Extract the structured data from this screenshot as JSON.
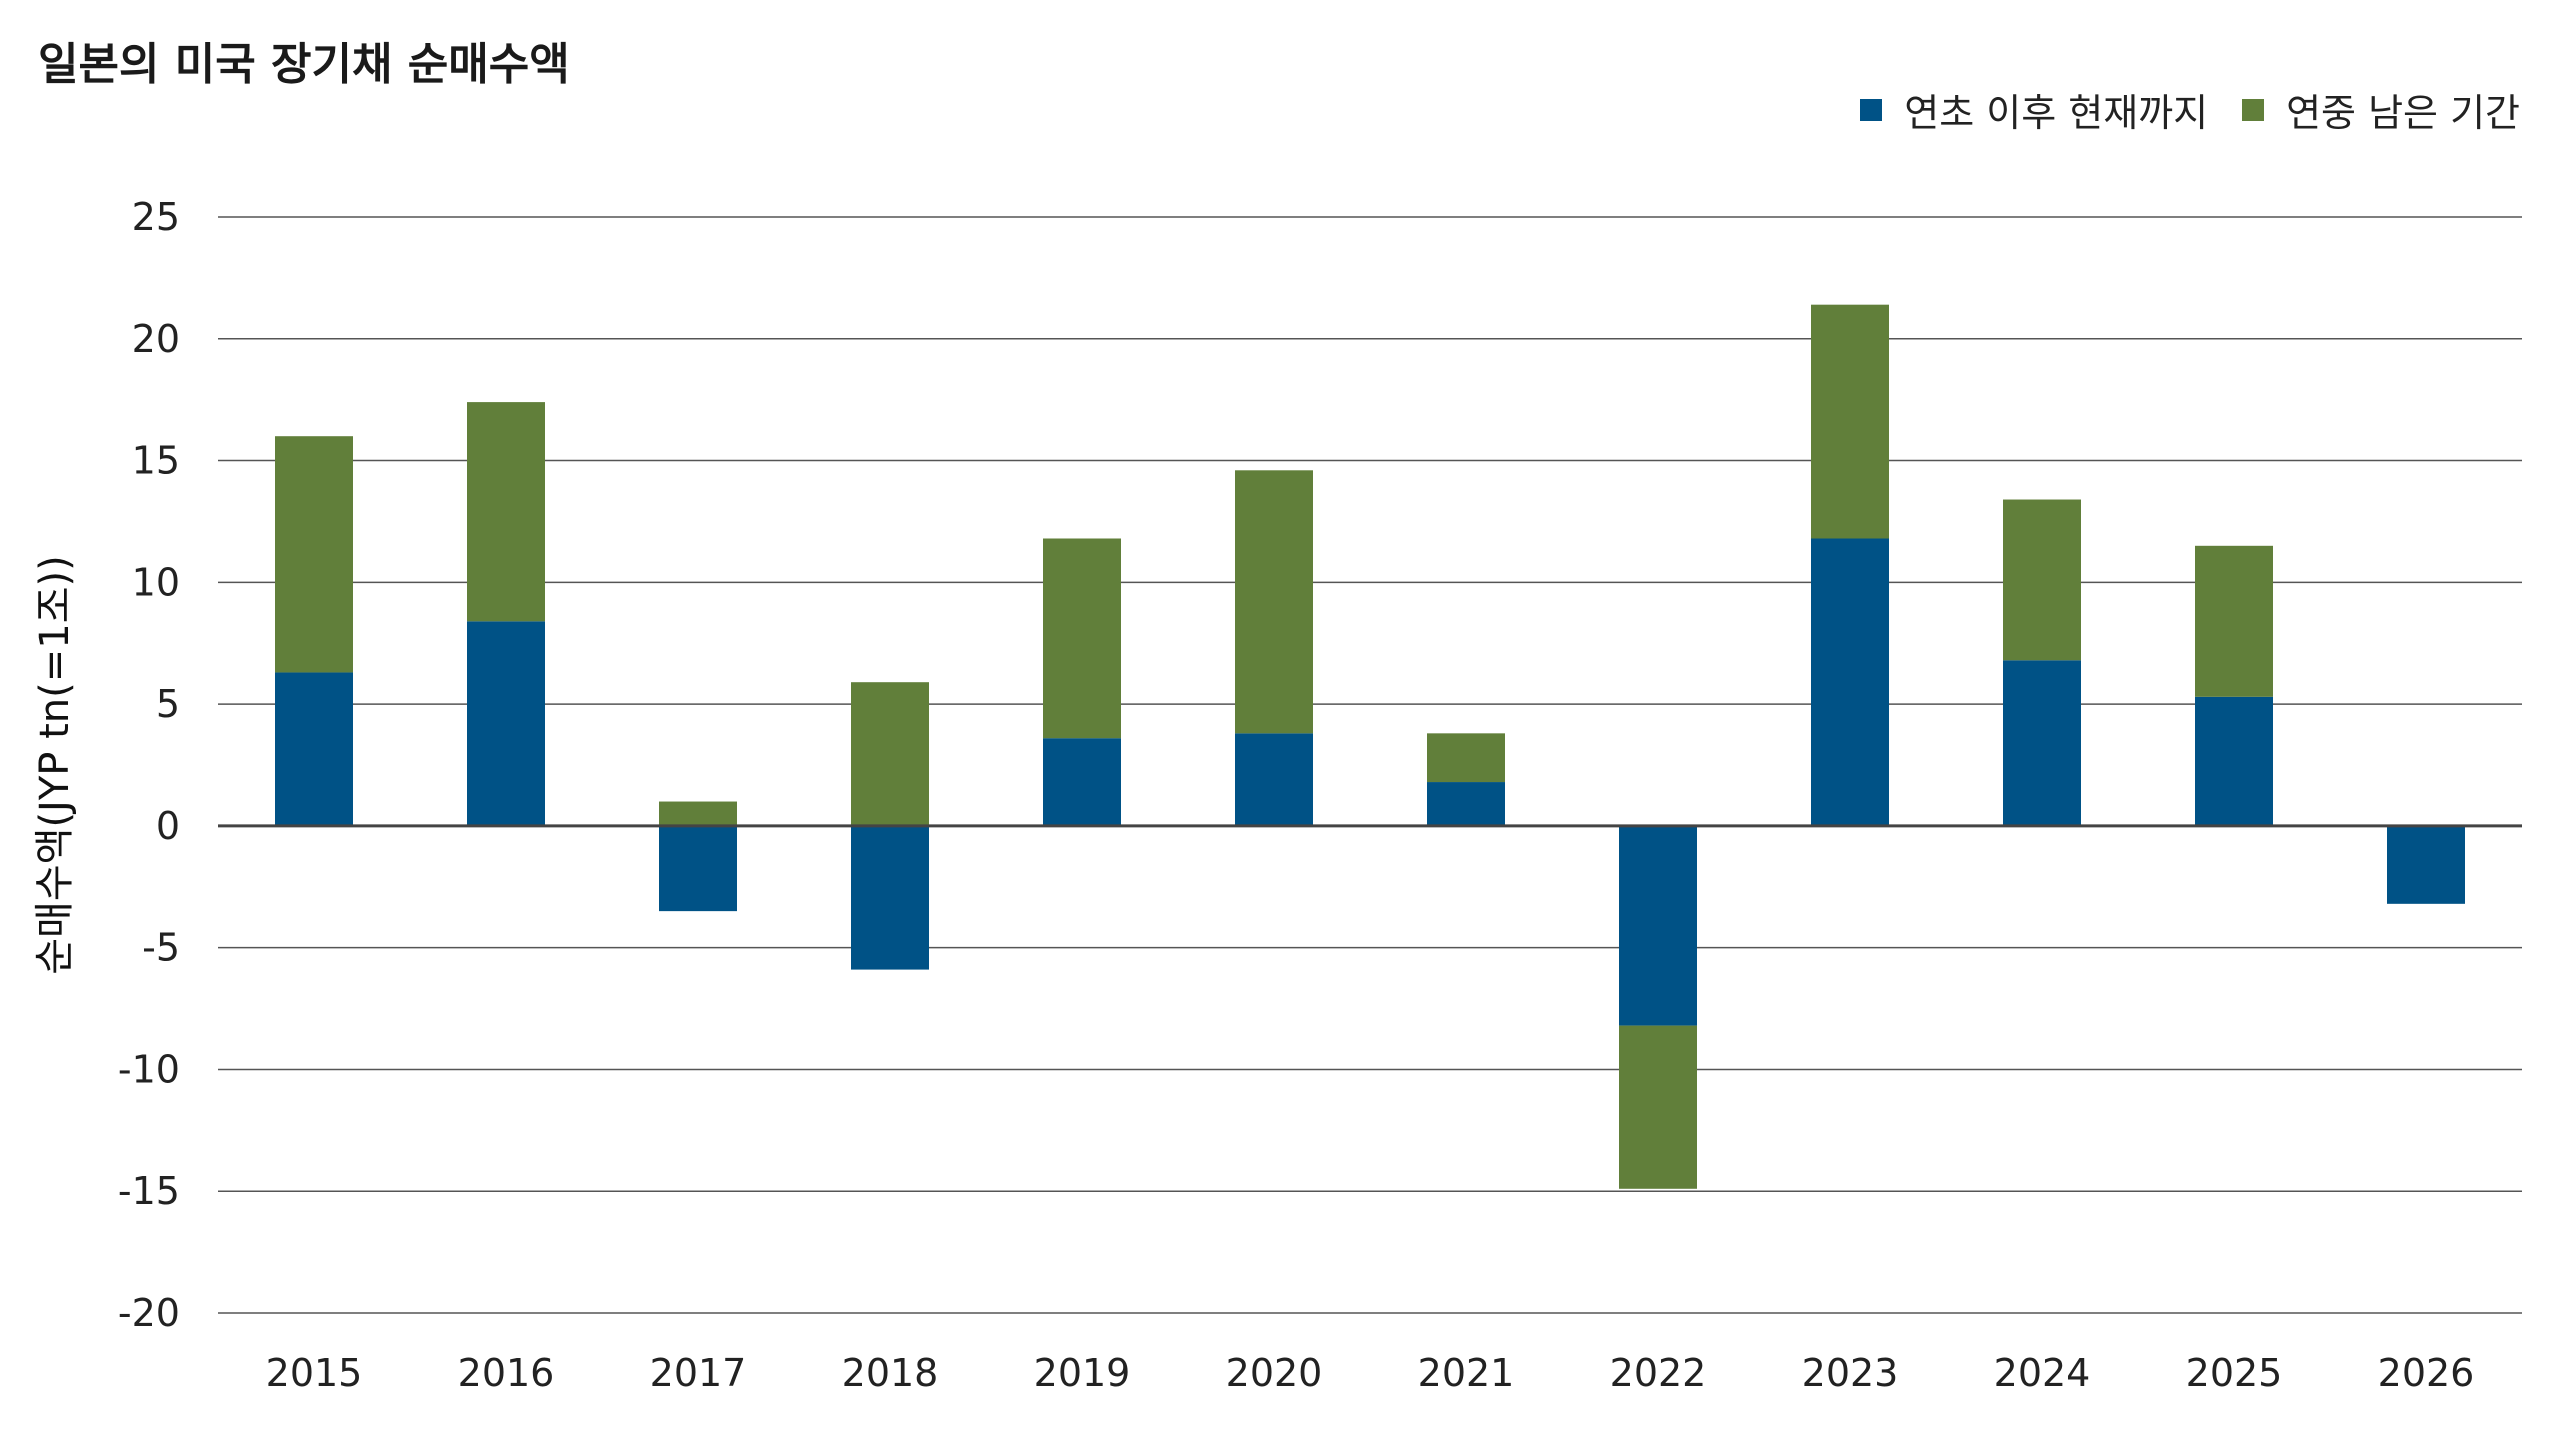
{
  "colors": {
    "ytd": "#005286",
    "rest": "#617F3A",
    "grid": "#444444"
  },
  "chart_data": {
    "type": "bar",
    "stacked": true,
    "title": "일본의 미국 장기채 순매수액",
    "ylabel": "순매수액(JYP tn(=1조))",
    "xlabel": "",
    "ylim": [
      -20,
      25
    ],
    "yticks": [
      25,
      20,
      15,
      10,
      5,
      0,
      -5,
      -10,
      -15,
      -20
    ],
    "categories": [
      "2015",
      "2016",
      "2017",
      "2018",
      "2019",
      "2020",
      "2021",
      "2022",
      "2023",
      "2024",
      "2025",
      "2026"
    ],
    "legend_position": "top-right",
    "grid": true,
    "series": [
      {
        "name": "연초 이후 현재까지",
        "color": "#005286",
        "values": [
          6.3,
          8.4,
          -3.5,
          -5.9,
          3.6,
          3.8,
          1.8,
          -8.2,
          11.8,
          6.8,
          5.3,
          -3.2
        ]
      },
      {
        "name": "연중 남은 기간",
        "color": "#617F3A",
        "values": [
          9.7,
          9.0,
          1.0,
          5.9,
          8.2,
          10.8,
          2.0,
          -6.7,
          9.6,
          6.6,
          6.2,
          0
        ]
      }
    ]
  }
}
